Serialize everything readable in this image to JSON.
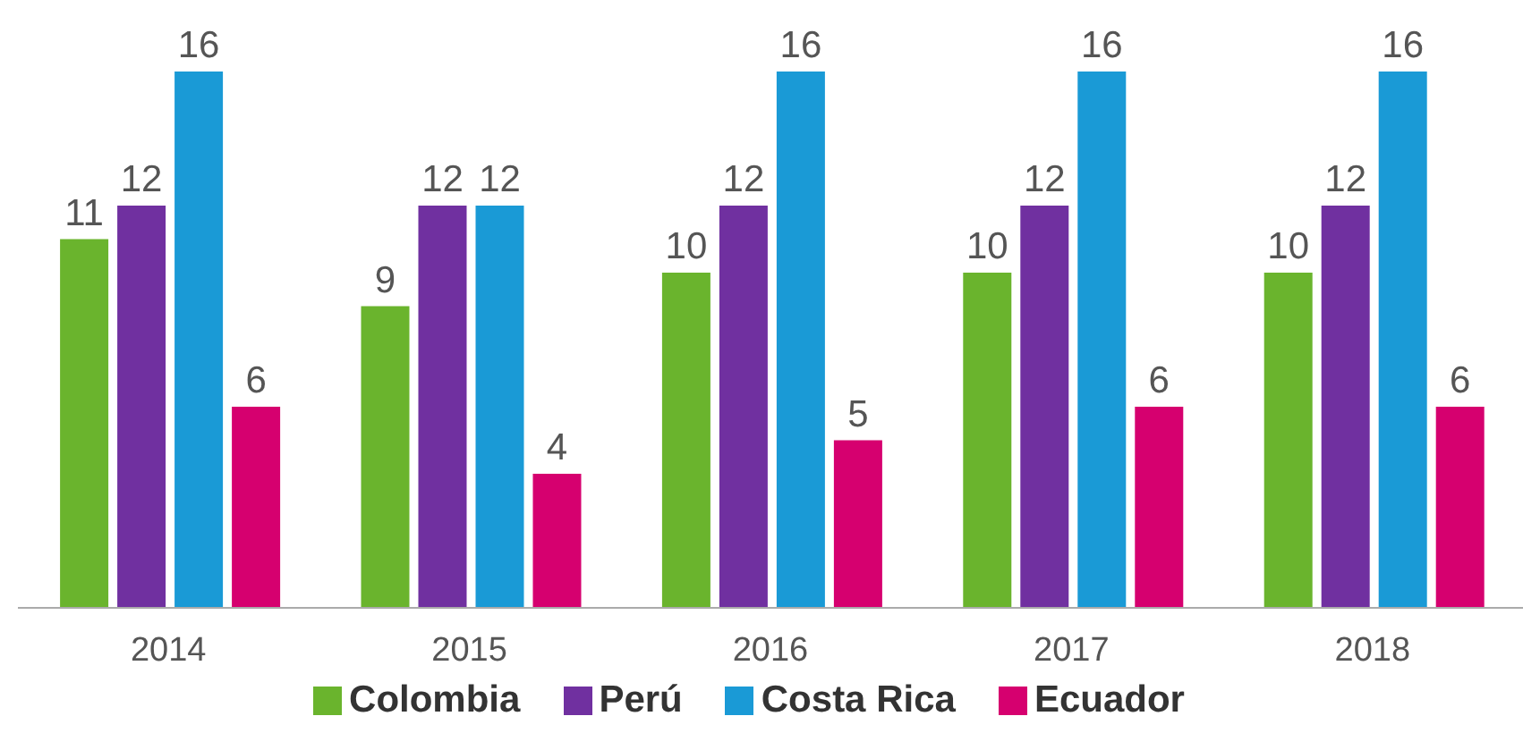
{
  "chart_data": {
    "type": "bar",
    "categories": [
      "2014",
      "2015",
      "2016",
      "2017",
      "2018"
    ],
    "series": [
      {
        "name": "Colombia",
        "color": "#6ab42d",
        "values": [
          11,
          9,
          10,
          10,
          10
        ]
      },
      {
        "name": "Perú",
        "color": "#7030a0",
        "values": [
          12,
          12,
          12,
          12,
          12
        ]
      },
      {
        "name": "Costa Rica",
        "color": "#1a9ad6",
        "values": [
          16,
          12,
          16,
          16,
          16
        ]
      },
      {
        "name": "Ecuador",
        "color": "#d6006f",
        "values": [
          6,
          4,
          5,
          6,
          6
        ]
      }
    ],
    "data_labels": true,
    "legend": "bottom",
    "grid": false
  }
}
